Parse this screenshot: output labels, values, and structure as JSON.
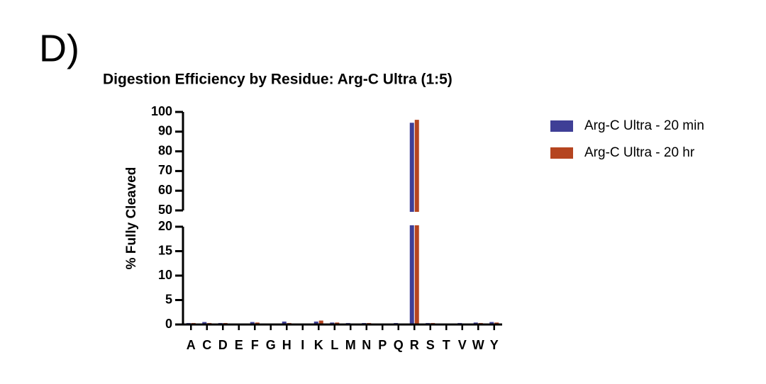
{
  "panel_label": "D)",
  "chart_data": {
    "type": "bar",
    "title": "Digestion Efficiency by Residue: Arg-C Ultra (1:5)",
    "ylabel": "% Fully Cleaved",
    "categories": [
      "A",
      "C",
      "D",
      "E",
      "F",
      "G",
      "H",
      "I",
      "K",
      "L",
      "M",
      "N",
      "P",
      "Q",
      "R",
      "S",
      "T",
      "V",
      "W",
      "Y"
    ],
    "series": [
      {
        "name": "Arg-C Ultra - 20 min",
        "color": "#3f3f96",
        "values": [
          0.3,
          0.5,
          0.3,
          0.2,
          0.5,
          0.2,
          0.6,
          0.2,
          0.6,
          0.4,
          0.3,
          0.3,
          0.2,
          0.3,
          94.5,
          0.3,
          0.1,
          0.3,
          0.4,
          0.5
        ]
      },
      {
        "name": "Arg-C Ultra - 20 hr",
        "color": "#b5441f",
        "values": [
          0.3,
          0.3,
          0.3,
          0.2,
          0.4,
          0.2,
          0.3,
          0.1,
          0.8,
          0.4,
          0.2,
          0.3,
          0.1,
          0.2,
          96,
          0.3,
          0.1,
          0.2,
          0.3,
          0.4
        ]
      }
    ],
    "ylim": [
      0,
      100
    ],
    "ybreak": [
      20,
      50
    ],
    "yticks": [
      0,
      5,
      10,
      15,
      20,
      50,
      60,
      70,
      80,
      90,
      100
    ],
    "legend": "upper right"
  }
}
